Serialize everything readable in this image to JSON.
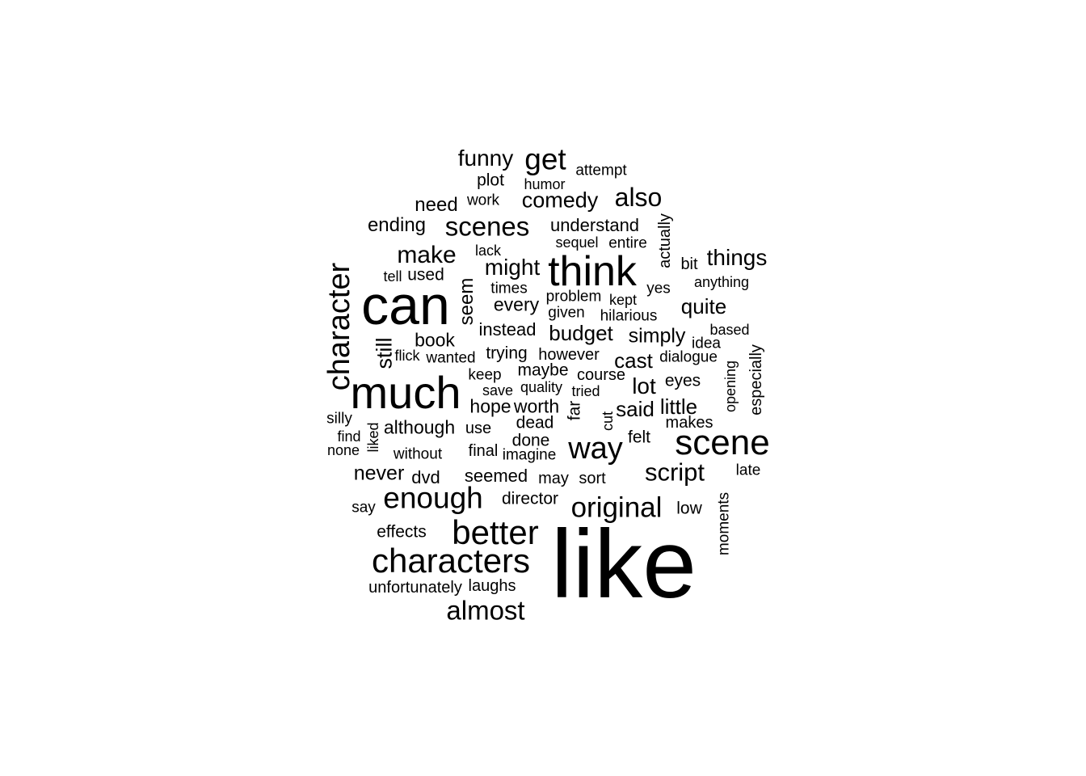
{
  "word_cloud": {
    "text_color": "#000000",
    "background_color": "#ffffff",
    "words": [
      {
        "text": "like",
        "weight": 100
      },
      {
        "text": "can",
        "weight": 64
      },
      {
        "text": "much",
        "weight": 56
      },
      {
        "text": "think",
        "weight": 52
      },
      {
        "text": "scene",
        "weight": 44
      },
      {
        "text": "characters",
        "weight": 42
      },
      {
        "text": "better",
        "weight": 42
      },
      {
        "text": "character",
        "weight": 38
      },
      {
        "text": "way",
        "weight": 38
      },
      {
        "text": "get",
        "weight": 37
      },
      {
        "text": "enough",
        "weight": 37
      },
      {
        "text": "original",
        "weight": 35
      },
      {
        "text": "scenes",
        "weight": 33
      },
      {
        "text": "almost",
        "weight": 33
      },
      {
        "text": "also",
        "weight": 32
      },
      {
        "text": "script",
        "weight": 31
      },
      {
        "text": "make",
        "weight": 30
      },
      {
        "text": "things",
        "weight": 28
      },
      {
        "text": "might",
        "weight": 28
      },
      {
        "text": "funny",
        "weight": 28
      },
      {
        "text": "lot",
        "weight": 28
      },
      {
        "text": "comedy",
        "weight": 27
      },
      {
        "text": "still",
        "weight": 27
      },
      {
        "text": "budget",
        "weight": 26
      },
      {
        "text": "little",
        "weight": 26
      },
      {
        "text": "said",
        "weight": 26
      },
      {
        "text": "cast",
        "weight": 26
      },
      {
        "text": "quite",
        "weight": 26
      },
      {
        "text": "simply",
        "weight": 25
      },
      {
        "text": "never",
        "weight": 25
      },
      {
        "text": "need",
        "weight": 24
      },
      {
        "text": "ending",
        "weight": 24
      },
      {
        "text": "seem",
        "weight": 24
      },
      {
        "text": "every",
        "weight": 23
      },
      {
        "text": "book",
        "weight": 23
      },
      {
        "text": "although",
        "weight": 23
      },
      {
        "text": "hope",
        "weight": 23
      },
      {
        "text": "worth",
        "weight": 23
      },
      {
        "text": "understand",
        "weight": 22
      },
      {
        "text": "instead",
        "weight": 22
      },
      {
        "text": "seemed",
        "weight": 22
      },
      {
        "text": "dvd",
        "weight": 22
      },
      {
        "text": "plot",
        "weight": 21
      },
      {
        "text": "used",
        "weight": 21
      },
      {
        "text": "trying",
        "weight": 21
      },
      {
        "text": "maybe",
        "weight": 21
      },
      {
        "text": "far",
        "weight": 21
      },
      {
        "text": "eyes",
        "weight": 21
      },
      {
        "text": "dead",
        "weight": 21
      },
      {
        "text": "done",
        "weight": 21
      },
      {
        "text": "felt",
        "weight": 21
      },
      {
        "text": "director",
        "weight": 21
      },
      {
        "text": "low",
        "weight": 21
      },
      {
        "text": "effects",
        "weight": 21
      },
      {
        "text": "laughs",
        "weight": 20
      },
      {
        "text": "unfortunately",
        "weight": 20
      },
      {
        "text": "actually",
        "weight": 20
      },
      {
        "text": "bit",
        "weight": 20
      },
      {
        "text": "however",
        "weight": 20
      },
      {
        "text": "course",
        "weight": 20
      },
      {
        "text": "makes",
        "weight": 20
      },
      {
        "text": "use",
        "weight": 20
      },
      {
        "text": "final",
        "weight": 20
      },
      {
        "text": "may",
        "weight": 20
      },
      {
        "text": "sort",
        "weight": 20
      },
      {
        "text": "especially",
        "weight": 20
      },
      {
        "text": "attempt",
        "weight": 19
      },
      {
        "text": "work",
        "weight": 19
      },
      {
        "text": "entire",
        "weight": 19
      },
      {
        "text": "times",
        "weight": 19
      },
      {
        "text": "problem",
        "weight": 19
      },
      {
        "text": "yes",
        "weight": 19
      },
      {
        "text": "given",
        "weight": 19
      },
      {
        "text": "hilarious",
        "weight": 19
      },
      {
        "text": "wanted",
        "weight": 19
      },
      {
        "text": "dialogue",
        "weight": 19
      },
      {
        "text": "keep",
        "weight": 19
      },
      {
        "text": "idea",
        "weight": 19
      },
      {
        "text": "silly",
        "weight": 19
      },
      {
        "text": "say",
        "weight": 19
      },
      {
        "text": "late",
        "weight": 19
      },
      {
        "text": "moments",
        "weight": 19
      },
      {
        "text": "without",
        "weight": 19
      },
      {
        "text": "imagine",
        "weight": 19
      },
      {
        "text": "humor",
        "weight": 18
      },
      {
        "text": "sequel",
        "weight": 18
      },
      {
        "text": "lack",
        "weight": 18
      },
      {
        "text": "tell",
        "weight": 18
      },
      {
        "text": "anything",
        "weight": 18
      },
      {
        "text": "kept",
        "weight": 18
      },
      {
        "text": "based",
        "weight": 18
      },
      {
        "text": "flick",
        "weight": 18
      },
      {
        "text": "save",
        "weight": 18
      },
      {
        "text": "quality",
        "weight": 18
      },
      {
        "text": "tried",
        "weight": 18
      },
      {
        "text": "opening",
        "weight": 18
      },
      {
        "text": "cut",
        "weight": 18
      },
      {
        "text": "liked",
        "weight": 18
      },
      {
        "text": "find",
        "weight": 18
      },
      {
        "text": "none",
        "weight": 18
      }
    ]
  }
}
